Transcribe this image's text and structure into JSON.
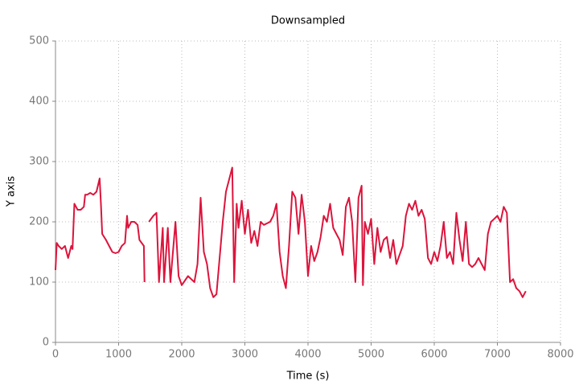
{
  "chart_data": {
    "type": "line",
    "title": "Downsampled",
    "xlabel": "Time (s)",
    "ylabel": "Y axis",
    "xlim": [
      0,
      8000
    ],
    "xticks": [
      0,
      1000,
      2000,
      3000,
      4000,
      5000,
      6000,
      7000,
      8000
    ],
    "ylim": [
      0,
      500
    ],
    "yticks": [
      0,
      100,
      200,
      300,
      400,
      500
    ],
    "grid": true,
    "series": [
      {
        "color": "#dc143c",
        "x": [
          0,
          20,
          50,
          100,
          150,
          200,
          250,
          270,
          300,
          350,
          400,
          450,
          470,
          500,
          550,
          600,
          650,
          700,
          720,
          740,
          800,
          850,
          900,
          950,
          1000,
          1050,
          1100,
          1134,
          1150,
          1200,
          1250,
          1300,
          1330,
          1400,
          1410,
          1450,
          1480,
          1550,
          1600,
          1640,
          1700,
          1720,
          1780,
          1820,
          1900,
          1950,
          2000,
          2100,
          2200,
          2250,
          2300,
          2350,
          2400,
          2450,
          2500,
          2550,
          2600,
          2650,
          2700,
          2750,
          2800,
          2830,
          2870,
          2900,
          2950,
          3000,
          3050,
          3100,
          3150,
          3200,
          3250,
          3300,
          3400,
          3450,
          3500,
          3550,
          3600,
          3650,
          3700,
          3750,
          3800,
          3850,
          3900,
          3950,
          4000,
          4050,
          4100,
          4150,
          4200,
          4250,
          4300,
          4350,
          4400,
          4450,
          4500,
          4550,
          4600,
          4650,
          4700,
          4750,
          4800,
          4850,
          4870,
          4900,
          4950,
          5000,
          5050,
          5100,
          5150,
          5200,
          5250,
          5300,
          5350,
          5400,
          5450,
          5500,
          5550,
          5600,
          5650,
          5700,
          5750,
          5800,
          5850,
          5900,
          5950,
          6000,
          6050,
          6100,
          6150,
          6200,
          6250,
          6300,
          6350,
          6400,
          6450,
          6500,
          6550,
          6600,
          6650,
          6700,
          6750,
          6800,
          6850,
          6900,
          6950,
          7000,
          7050,
          7100,
          7150,
          7200,
          7250,
          7300,
          7350,
          7400,
          7450
        ],
        "values": [
          120,
          165,
          160,
          155,
          160,
          140,
          160,
          155,
          230,
          220,
          220,
          225,
          245,
          245,
          248,
          245,
          250,
          272,
          230,
          180,
          170,
          160,
          150,
          148,
          150,
          160,
          165,
          210,
          190,
          200,
          200,
          195,
          170,
          160,
          100,
          null,
          200,
          210,
          215,
          100,
          190,
          100,
          190,
          100,
          200,
          110,
          95,
          110,
          100,
          130,
          240,
          150,
          130,
          90,
          75,
          80,
          140,
          200,
          250,
          270,
          290,
          100,
          230,
          190,
          235,
          180,
          220,
          165,
          185,
          160,
          200,
          195,
          200,
          210,
          230,
          150,
          110,
          90,
          160,
          250,
          240,
          180,
          245,
          200,
          110,
          160,
          135,
          150,
          175,
          210,
          200,
          230,
          190,
          180,
          170,
          145,
          225,
          240,
          200,
          100,
          240,
          260,
          95,
          200,
          180,
          205,
          130,
          190,
          150,
          170,
          175,
          140,
          170,
          130,
          145,
          160,
          210,
          230,
          220,
          235,
          210,
          220,
          205,
          140,
          130,
          150,
          135,
          160,
          200,
          140,
          150,
          130,
          215,
          170,
          135,
          200,
          130,
          125,
          130,
          140,
          130,
          120,
          180,
          200,
          205,
          210,
          200,
          225,
          215,
          100,
          105,
          90,
          85,
          75,
          85
        ]
      }
    ]
  }
}
